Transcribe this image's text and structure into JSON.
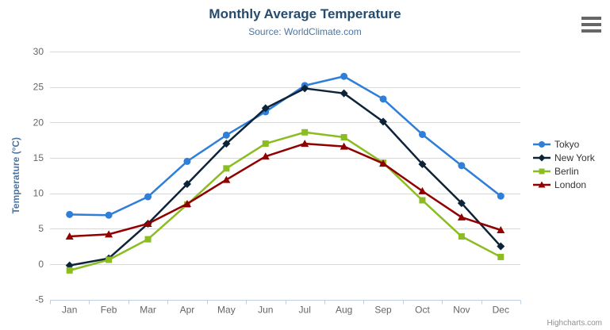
{
  "chart_data": {
    "type": "line",
    "title": "Monthly Average Temperature",
    "subtitle": "Source: WorldClimate.com",
    "xlabel": "",
    "ylabel": "Temperature (°C)",
    "ylim": [
      -5,
      30
    ],
    "ytick_interval": 5,
    "yticks": [
      -5,
      0,
      5,
      10,
      15,
      20,
      25,
      30
    ],
    "grid": true,
    "legend_position": "right",
    "credits": "Highcharts.com",
    "categories": [
      "Jan",
      "Feb",
      "Mar",
      "Apr",
      "May",
      "Jun",
      "Jul",
      "Aug",
      "Sep",
      "Oct",
      "Nov",
      "Dec"
    ],
    "series": [
      {
        "name": "Tokyo",
        "color": "#2f7ed8",
        "marker": "circle",
        "values": [
          7.0,
          6.9,
          9.5,
          14.5,
          18.2,
          21.5,
          25.2,
          26.5,
          23.3,
          18.3,
          13.9,
          9.6
        ]
      },
      {
        "name": "New York",
        "color": "#0d233a",
        "marker": "diamond",
        "values": [
          -0.2,
          0.8,
          5.7,
          11.3,
          17.0,
          22.0,
          24.8,
          24.1,
          20.1,
          14.1,
          8.6,
          2.5
        ]
      },
      {
        "name": "Berlin",
        "color": "#8bbc21",
        "marker": "square",
        "values": [
          -0.9,
          0.6,
          3.5,
          8.4,
          13.5,
          17.0,
          18.6,
          17.9,
          14.3,
          9.0,
          3.9,
          1.0
        ]
      },
      {
        "name": "London",
        "color": "#910000",
        "marker": "triangle",
        "values": [
          3.9,
          4.2,
          5.7,
          8.5,
          11.9,
          15.2,
          17.0,
          16.6,
          14.2,
          10.3,
          6.6,
          4.8
        ]
      }
    ]
  },
  "colors": {
    "title": "#274b6d",
    "subtitle": "#4d759e",
    "axis_label": "#666666",
    "axis_title": "#4d759e",
    "grid_line": "#d8d8d8",
    "axis_line": "#c0d0e0",
    "legend_text": "#333333",
    "credits": "#909090",
    "menu_icon": "#666666"
  }
}
